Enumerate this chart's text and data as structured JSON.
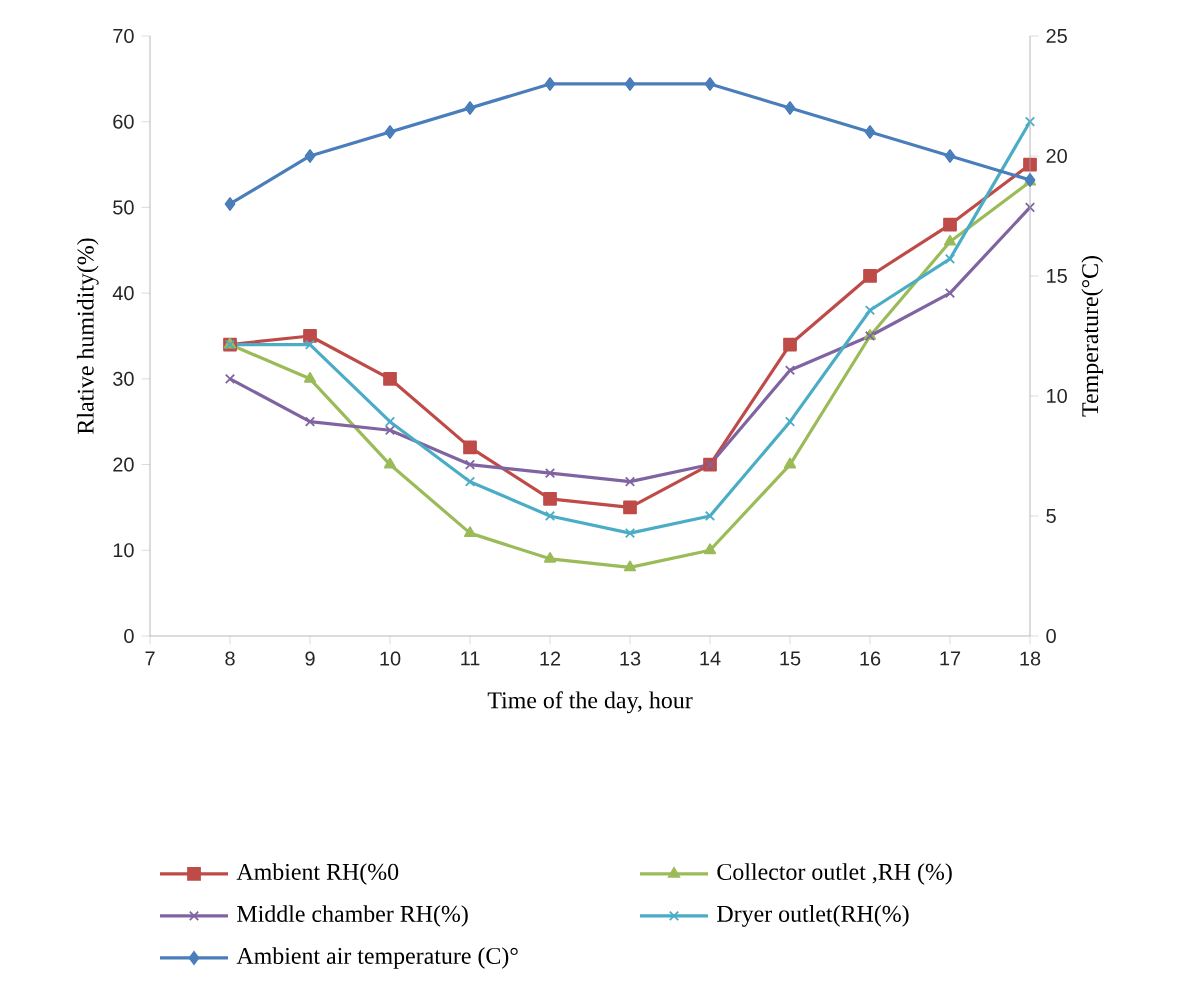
{
  "chart_data": {
    "type": "line",
    "xlabel": "Time of the day, hour",
    "ylabel": "Rlative humidity(%)",
    "y2label": "Temperature(°C)",
    "x": [
      8,
      9,
      10,
      11,
      12,
      13,
      14,
      15,
      16,
      17,
      18
    ],
    "xlim": [
      7,
      18
    ],
    "xticks": [
      7,
      8,
      9,
      10,
      11,
      12,
      13,
      14,
      15,
      16,
      17,
      18
    ],
    "ylim": [
      0,
      70
    ],
    "yticks": [
      0,
      10,
      20,
      30,
      40,
      50,
      60,
      70
    ],
    "y2lim": [
      0,
      25
    ],
    "y2ticks": [
      0,
      5,
      10,
      15,
      20,
      25
    ],
    "grid": false,
    "legend": "bottom",
    "series": [
      {
        "name": "Ambient RH(%0",
        "color": "#be4b48",
        "marker": "square",
        "values": [
          34,
          35,
          30,
          22,
          16,
          15,
          20,
          34,
          42,
          48,
          55
        ]
      },
      {
        "name": "Collector outlet ,RH (%)",
        "color": "#9bbb59",
        "marker": "triangle",
        "values": [
          34,
          30,
          20,
          12,
          9,
          8,
          10,
          20,
          35,
          46,
          53
        ]
      },
      {
        "name": "Middle chamber RH(%)",
        "color": "#8064a2",
        "marker": "cross",
        "values": [
          30,
          25,
          24,
          20,
          19,
          18,
          20,
          31,
          35,
          40,
          50
        ]
      },
      {
        "name": "Dryer outlet(RH(%)",
        "color": "#4bacc6",
        "marker": "cross",
        "values": [
          34,
          34,
          25,
          18,
          14,
          12,
          14,
          25,
          38,
          44,
          60
        ]
      },
      {
        "name": "Ambient air temperature (C)°",
        "color": "#4a7ebb",
        "marker": "diamond",
        "axis": "y2",
        "values": [
          18,
          20,
          21,
          22,
          23,
          23,
          23,
          22,
          21,
          20,
          19
        ]
      }
    ]
  }
}
